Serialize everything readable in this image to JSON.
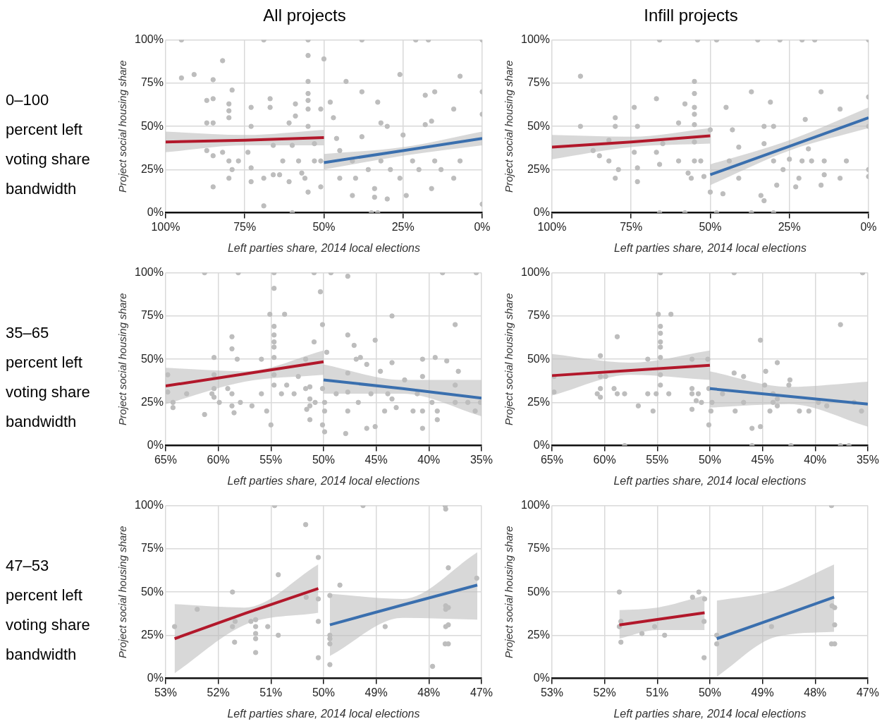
{
  "chart_data": [
    {
      "type": "scatter",
      "title": "All projects",
      "annotations": [
        "0–100 percent left voting share bandwidth"
      ],
      "xlabel": "Left parties share, 2014 local elections",
      "ylabel": "Project social housing share",
      "xlim": [
        100,
        0
      ],
      "xticks": [
        {
          "value": 100,
          "label": "100%"
        },
        {
          "value": 75,
          "label": "75%"
        },
        {
          "value": 50,
          "label": "50%"
        },
        {
          "value": 25,
          "label": "25%"
        },
        {
          "value": 0,
          "label": "0%"
        }
      ],
      "ylim": [
        0,
        100
      ],
      "yticks": [
        {
          "value": 0,
          "label": "0%"
        },
        {
          "value": 25,
          "label": "25%"
        },
        {
          "value": 50,
          "label": "50%"
        },
        {
          "value": 75,
          "label": "75%"
        },
        {
          "value": 100,
          "label": "100%"
        }
      ],
      "grid": true,
      "marker": "circle",
      "series": [
        {
          "type": "scatter",
          "color": "#bdbdbd",
          "x": [
            95,
            95,
            91,
            85,
            82,
            87,
            85,
            87,
            85,
            80,
            80,
            80,
            79,
            87,
            85,
            82,
            80,
            77,
            85,
            80,
            79,
            73,
            73,
            74,
            73,
            73,
            69,
            69,
            67,
            67,
            66,
            66,
            64,
            63,
            61,
            59,
            59,
            61,
            60,
            58,
            57,
            55,
            55,
            55,
            55,
            55,
            55,
            55,
            56,
            53,
            53,
            51,
            50,
            51,
            51,
            69,
            55,
            48,
            47,
            46,
            45,
            43,
            38,
            38,
            33,
            32,
            30,
            26,
            25,
            18,
            15,
            18,
            16,
            7,
            9,
            0,
            0,
            41,
            40,
            34,
            34,
            30,
            24,
            16,
            9,
            7,
            0,
            38,
            21,
            17,
            0,
            45,
            41,
            36,
            32,
            29,
            26,
            22,
            20,
            15,
            13,
            35,
            33,
            60
          ],
          "values": [
            100,
            78,
            80,
            77,
            88,
            65,
            66,
            52,
            52,
            63,
            59,
            55,
            71,
            36,
            33,
            35,
            30,
            30,
            15,
            20,
            25,
            61,
            50,
            35,
            26,
            18,
            20,
            4,
            66,
            61,
            39,
            22,
            22,
            30,
            18,
            63,
            56,
            52,
            39,
            30,
            23,
            91,
            76,
            69,
            65,
            60,
            50,
            12,
            20,
            30,
            40,
            60,
            89,
            30,
            15,
            100,
            100,
            64,
            55,
            43,
            36,
            76,
            70,
            44,
            64,
            52,
            50,
            80,
            45,
            68,
            70,
            51,
            53,
            79,
            60,
            70,
            57,
            10,
            20,
            9,
            14,
            8,
            10,
            14,
            20,
            30,
            5,
            100,
            100,
            100,
            100,
            20,
            30,
            25,
            30,
            25,
            20,
            30,
            25,
            30,
            25,
            0,
            0,
            0
          ]
        },
        {
          "type": "line",
          "marker": "none",
          "color": "#b2182b",
          "x": [
            100,
            75,
            50
          ],
          "values": [
            41,
            42,
            43.5
          ],
          "lower": [
            35,
            39,
            39
          ],
          "upper": [
            47,
            45,
            48
          ]
        },
        {
          "type": "line",
          "marker": "none",
          "color": "#3a6fae",
          "x": [
            50,
            25,
            0
          ],
          "values": [
            29,
            36,
            43
          ],
          "lower": [
            25,
            33,
            39
          ],
          "upper": [
            34,
            38,
            47
          ]
        }
      ]
    },
    {
      "type": "scatter",
      "title": "Infill projects",
      "xlabel": "Left parties share, 2014 local elections",
      "ylabel": "Project social housing share",
      "xlim": [
        100,
        0
      ],
      "xticks": [
        {
          "value": 100,
          "label": "100%"
        },
        {
          "value": 75,
          "label": "75%"
        },
        {
          "value": 50,
          "label": "50%"
        },
        {
          "value": 25,
          "label": "25%"
        },
        {
          "value": 0,
          "label": "0%"
        }
      ],
      "ylim": [
        0,
        100
      ],
      "yticks": [
        {
          "value": 0,
          "label": "0%"
        },
        {
          "value": 25,
          "label": "25%"
        },
        {
          "value": 50,
          "label": "50%"
        },
        {
          "value": 75,
          "label": "75%"
        },
        {
          "value": 100,
          "label": "100%"
        }
      ],
      "grid": true,
      "marker": "circle",
      "series": [
        {
          "type": "scatter",
          "color": "#bdbdbd",
          "x": [
            91,
            91,
            80,
            80,
            82,
            87,
            85,
            82,
            80,
            79,
            74,
            73,
            74,
            73,
            73,
            67,
            67,
            66,
            65,
            60,
            58,
            60,
            57,
            56,
            55,
            55,
            55,
            55,
            55,
            55,
            55,
            53,
            52,
            50,
            50,
            66,
            54,
            48,
            35,
            28,
            21,
            17,
            0,
            45,
            46,
            44,
            43,
            41,
            41,
            37,
            33,
            33,
            34,
            33,
            31,
            30,
            30,
            29,
            27,
            25,
            23,
            22,
            21,
            20,
            19,
            18,
            15,
            15,
            14,
            14,
            9,
            7,
            9,
            0,
            0,
            0,
            0,
            37,
            30,
            48,
            66,
            58
          ],
          "values": [
            79,
            50,
            55,
            50,
            42,
            36,
            33,
            30,
            20,
            25,
            61,
            50,
            35,
            26,
            18,
            66,
            35,
            28,
            40,
            52,
            63,
            30,
            23,
            20,
            76,
            69,
            61,
            57,
            51,
            41,
            30,
            30,
            21,
            12,
            48,
            100,
            100,
            100,
            100,
            100,
            100,
            100,
            100,
            61,
            11,
            30,
            48,
            38,
            20,
            70,
            40,
            50,
            10,
            7,
            64,
            50,
            30,
            16,
            25,
            31,
            15,
            20,
            30,
            54,
            37,
            30,
            70,
            16,
            22,
            30,
            60,
            30,
            20,
            67,
            50,
            21,
            25,
            0,
            0,
            0,
            0,
            0
          ]
        },
        {
          "type": "line",
          "marker": "none",
          "color": "#b2182b",
          "x": [
            100,
            75,
            50
          ],
          "values": [
            38,
            41,
            44.5
          ],
          "lower": [
            31,
            38,
            40
          ],
          "upper": [
            45,
            44,
            49
          ]
        },
        {
          "type": "line",
          "marker": "none",
          "color": "#3a6fae",
          "x": [
            50,
            25,
            0
          ],
          "values": [
            22,
            38.5,
            55
          ],
          "lower": [
            16,
            36,
            49
          ],
          "upper": [
            28,
            42,
            61
          ]
        }
      ]
    },
    {
      "type": "scatter",
      "annotations": [
        "35–65 percent left voting share bandwidth"
      ],
      "xlabel": "Left parties share, 2014 local elections",
      "ylabel": "Project social housing share",
      "xlim": [
        65,
        35
      ],
      "xticks": [
        {
          "value": 65,
          "label": "65%"
        },
        {
          "value": 60,
          "label": "60%"
        },
        {
          "value": 55,
          "label": "55%"
        },
        {
          "value": 50,
          "label": "50%"
        },
        {
          "value": 45,
          "label": "45%"
        },
        {
          "value": 40,
          "label": "40%"
        },
        {
          "value": 35,
          "label": "35%"
        }
      ],
      "ylim": [
        0,
        100
      ],
      "yticks": [
        {
          "value": 0,
          "label": "0%"
        },
        {
          "value": 25,
          "label": "25%"
        },
        {
          "value": 50,
          "label": "50%"
        },
        {
          "value": 75,
          "label": "75%"
        },
        {
          "value": 100,
          "label": "100%"
        }
      ],
      "grid": true,
      "marker": "circle",
      "series": [
        {
          "type": "scatter",
          "color": "#bdbdbd",
          "x": [
            64.8,
            64.8,
            64.3,
            64.3,
            63,
            61.3,
            61.3,
            60.4,
            60.4,
            60.4,
            60.6,
            60.4,
            59.9,
            59.1,
            58.7,
            58.7,
            58.2,
            58.7,
            58.7,
            58.5,
            57.9,
            58.1,
            56.8,
            55.9,
            55.9,
            55.4,
            55,
            55.1,
            54.7,
            54.7,
            54.7,
            54.7,
            54.7,
            54.7,
            54.7,
            54.7,
            54.7,
            54,
            53.7,
            53.5,
            52.8,
            52.4,
            51.7,
            51.7,
            51.6,
            51.3,
            51.3,
            51.3,
            51.3,
            50.9,
            50.8,
            50.9,
            50.3,
            50.1,
            50.1,
            50.1,
            49.9,
            49.9,
            49.9,
            49.7,
            49.3,
            48.8,
            47.9,
            47.7,
            47.7,
            47.7,
            47.7,
            47.7,
            47.1,
            46.9,
            46.5,
            46.7,
            45.9,
            45.9,
            45.5,
            45.1,
            45.1,
            44.6,
            44.2,
            43.9,
            43.5,
            43.5,
            43.5,
            43.1,
            42.3,
            41.5,
            41.1,
            40.6,
            40.6,
            40.6,
            40.6,
            39.4,
            39.7,
            39.2,
            39.2,
            38.7,
            38.3,
            37.5,
            37.5,
            37.2,
            37.5,
            36.3,
            35.6,
            35.1,
            35.5
          ],
          "values": [
            41,
            31,
            22,
            25,
            30,
            18,
            100,
            51,
            41,
            33,
            30,
            28,
            25,
            33,
            63,
            56,
            50,
            30,
            23,
            19,
            25,
            100,
            23,
            50,
            30,
            20,
            12,
            76,
            91,
            69,
            64,
            60,
            57,
            51,
            41,
            35,
            100,
            30,
            76,
            35,
            30,
            40,
            50,
            33,
            21,
            34,
            27,
            23,
            15,
            60,
            25,
            100,
            89,
            70,
            33,
            12,
            20,
            8,
            25,
            54,
            100,
            30,
            7,
            98,
            64,
            42,
            31,
            20,
            58,
            50,
            51,
            25,
            47,
            10,
            30,
            61,
            11,
            43,
            20,
            30,
            75,
            48,
            27,
            22,
            38,
            20,
            30,
            50,
            40,
            20,
            10,
            51,
            25,
            20,
            15,
            100,
            49,
            70,
            35,
            43,
            25,
            25,
            20,
            25,
            100
          ]
        },
        {
          "type": "line",
          "marker": "none",
          "color": "#b2182b",
          "x": [
            65,
            57.5,
            50
          ],
          "values": [
            34.5,
            41.5,
            48.5
          ],
          "lower": [
            24,
            37,
            41
          ],
          "upper": [
            45,
            43,
            55
          ]
        },
        {
          "type": "line",
          "marker": "none",
          "color": "#3a6fae",
          "x": [
            50,
            42.5,
            35
          ],
          "values": [
            38,
            33,
            27.5
          ],
          "lower": [
            30,
            30,
            17
          ],
          "upper": [
            47,
            38,
            38
          ]
        }
      ]
    },
    {
      "type": "scatter",
      "xlabel": "Left parties share, 2014 local elections",
      "ylabel": "Project social housing share",
      "xlim": [
        65,
        35
      ],
      "xticks": [
        {
          "value": 65,
          "label": "65%"
        },
        {
          "value": 60,
          "label": "60%"
        },
        {
          "value": 55,
          "label": "55%"
        },
        {
          "value": 50,
          "label": "50%"
        },
        {
          "value": 45,
          "label": "45%"
        },
        {
          "value": 40,
          "label": "40%"
        },
        {
          "value": 35,
          "label": "35%"
        }
      ],
      "ylim": [
        0,
        100
      ],
      "yticks": [
        {
          "value": 0,
          "label": "0%"
        },
        {
          "value": 25,
          "label": "25%"
        },
        {
          "value": 50,
          "label": "50%"
        },
        {
          "value": 75,
          "label": "75%"
        },
        {
          "value": 100,
          "label": "100%"
        }
      ],
      "grid": true,
      "marker": "circle",
      "series": [
        {
          "type": "scatter",
          "color": "#bdbdbd",
          "x": [
            64.8,
            64.8,
            60.7,
            60.4,
            60.4,
            60.4,
            60.4,
            59.9,
            59.1,
            58.8,
            58.8,
            58.1,
            56.8,
            55.9,
            55.9,
            55.4,
            55.1,
            54.9,
            54.7,
            54.7,
            54.7,
            54.7,
            54.7,
            54.7,
            54.7,
            54.7,
            53.7,
            53.9,
            51.7,
            51.7,
            51.7,
            51.7,
            51.3,
            51.1,
            50.8,
            50.2,
            50.1,
            50.1,
            49.8,
            49.9,
            48.8,
            47.7,
            47.7,
            47.6,
            46.8,
            46.8,
            46,
            45.2,
            45.2,
            44.8,
            44.7,
            44.3,
            44,
            44,
            43.6,
            43.6,
            43.6,
            42.5,
            42.4,
            41.5,
            40.6,
            39.7,
            38.9,
            37.6,
            36.3,
            35.6,
            35.5,
            46,
            42.3,
            37.6,
            36.8,
            58.1
          ],
          "values": [
            31,
            40,
            30,
            52,
            40,
            33,
            28,
            40,
            33,
            63,
            30,
            30,
            23,
            50,
            30,
            20,
            30,
            76,
            69,
            65,
            60,
            57,
            51,
            41,
            35,
            100,
            76,
            30,
            50,
            33,
            21,
            30,
            26,
            30,
            25,
            50,
            33,
            12,
            25,
            20,
            30,
            100,
            42,
            20,
            40,
            25,
            10,
            61,
            11,
            35,
            43,
            20,
            30,
            25,
            48,
            27,
            23,
            35,
            38,
            20,
            20,
            25,
            23,
            70,
            25,
            20,
            100,
            0,
            0,
            0,
            0,
            0
          ]
        },
        {
          "type": "line",
          "marker": "none",
          "color": "#b2182b",
          "x": [
            65,
            57.5,
            50
          ],
          "values": [
            40.5,
            43.5,
            46.5
          ],
          "lower": [
            29,
            41,
            38
          ],
          "upper": [
            53,
            48,
            55
          ]
        },
        {
          "type": "line",
          "marker": "none",
          "color": "#3a6fae",
          "x": [
            50,
            42.5,
            35
          ],
          "values": [
            33,
            28.5,
            24
          ],
          "lower": [
            22,
            24,
            11
          ],
          "upper": [
            43,
            34,
            37
          ]
        }
      ]
    },
    {
      "type": "scatter",
      "annotations": [
        "47–53 percent left voting share bandwidth"
      ],
      "xlabel": "Left parties share, 2014 local elections",
      "ylabel": "Project social housing share",
      "xlim": [
        53,
        47
      ],
      "xticks": [
        {
          "value": 53,
          "label": "53%"
        },
        {
          "value": 52,
          "label": "52%"
        },
        {
          "value": 51,
          "label": "51%"
        },
        {
          "value": 50,
          "label": "50%"
        },
        {
          "value": 49,
          "label": "49%"
        },
        {
          "value": 48,
          "label": "48%"
        },
        {
          "value": 47,
          "label": "47%"
        }
      ],
      "ylim": [
        0,
        100
      ],
      "yticks": [
        {
          "value": 0,
          "label": "0%"
        },
        {
          "value": 25,
          "label": "25%"
        },
        {
          "value": 50,
          "label": "50%"
        },
        {
          "value": 75,
          "label": "75%"
        },
        {
          "value": 100,
          "label": "100%"
        }
      ],
      "grid": true,
      "marker": "circle",
      "series": [
        {
          "type": "scatter",
          "color": "#bdbdbd",
          "x": [
            52.83,
            52.4,
            51.73,
            51.73,
            51.69,
            51.68,
            51.38,
            51.29,
            51.29,
            51.29,
            51.29,
            51.29,
            51.06,
            50.93,
            50.86,
            50.86,
            50.34,
            50.33,
            50.1,
            50.1,
            50.1,
            50.1,
            49.88,
            49.88,
            49.88,
            49.88,
            49.88,
            49.69,
            49.25,
            48.83,
            47.93,
            47.69,
            47.68,
            47.63,
            47.68,
            47.68,
            47.63,
            47.68,
            47.63,
            47.69,
            47.63,
            47.09
          ],
          "values": [
            30,
            40,
            50,
            30,
            21,
            33,
            33,
            34,
            30,
            26,
            23,
            15,
            30,
            100,
            60,
            25,
            89,
            47,
            70,
            33,
            46,
            12,
            48,
            25,
            23,
            20,
            8,
            54,
            100,
            30,
            7,
            100,
            98,
            64,
            42,
            40,
            41,
            30,
            31,
            20,
            20,
            58
          ]
        },
        {
          "type": "line",
          "marker": "none",
          "color": "#b2182b",
          "x": [
            52.83,
            51.5,
            50.1
          ],
          "values": [
            23,
            37.5,
            52
          ],
          "lower": [
            3,
            31,
            38
          ],
          "upper": [
            43,
            41,
            66
          ]
        },
        {
          "type": "line",
          "marker": "none",
          "color": "#3a6fae",
          "x": [
            49.88,
            48.5,
            47.08
          ],
          "values": [
            31,
            42.5,
            54
          ],
          "lower": [
            13,
            35,
            34
          ],
          "upper": [
            49,
            46,
            73
          ]
        }
      ]
    },
    {
      "type": "scatter",
      "xlabel": "Left parties share, 2014 local elections",
      "ylabel": "Project social housing share",
      "xlim": [
        53,
        47
      ],
      "xticks": [
        {
          "value": 53,
          "label": "53%"
        },
        {
          "value": 52,
          "label": "52%"
        },
        {
          "value": 51,
          "label": "51%"
        },
        {
          "value": 50,
          "label": "50%"
        },
        {
          "value": 49,
          "label": "49%"
        },
        {
          "value": 48,
          "label": "48%"
        },
        {
          "value": 47,
          "label": "47%"
        }
      ],
      "ylim": [
        0,
        100
      ],
      "yticks": [
        {
          "value": 0,
          "label": "0%"
        },
        {
          "value": 25,
          "label": "25%"
        },
        {
          "value": 50,
          "label": "50%"
        },
        {
          "value": 75,
          "label": "75%"
        },
        {
          "value": 100,
          "label": "100%"
        }
      ],
      "grid": true,
      "marker": "circle",
      "series": [
        {
          "type": "scatter",
          "color": "#bdbdbd",
          "x": [
            51.72,
            51.69,
            51.72,
            51.69,
            51.29,
            51.05,
            50.86,
            50.33,
            50.21,
            50.1,
            50.11,
            50.11,
            49.87,
            49.87,
            48.83,
            47.69,
            47.68,
            47.63,
            47.63,
            47.69,
            47.63
          ],
          "values": [
            50,
            33,
            30,
            21,
            26,
            30,
            25,
            47,
            50,
            46,
            33,
            12,
            25,
            20,
            30,
            100,
            42,
            41,
            31,
            20,
            20
          ]
        },
        {
          "type": "line",
          "marker": "none",
          "color": "#b2182b",
          "x": [
            51.72,
            51,
            50.1
          ],
          "values": [
            31,
            34.1,
            38
          ],
          "lower": [
            23,
            28,
            28
          ],
          "upper": [
            39.5,
            41,
            48
          ]
        },
        {
          "type": "line",
          "marker": "none",
          "color": "#3a6fae",
          "x": [
            49.87,
            48.75,
            47.64
          ],
          "values": [
            23,
            35,
            47
          ],
          "lower": [
            1,
            24,
            27
          ],
          "upper": [
            45,
            51,
            66
          ]
        }
      ]
    }
  ]
}
